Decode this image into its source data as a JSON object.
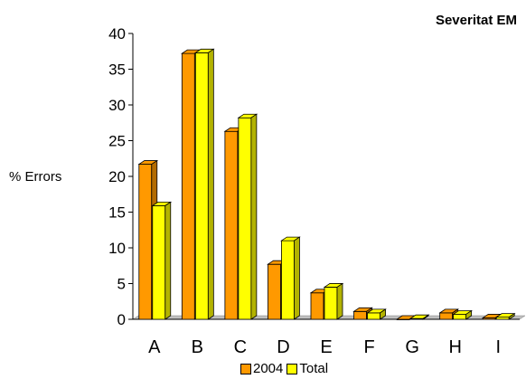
{
  "chart_data": {
    "type": "bar",
    "title": "Severitat EM",
    "xlabel": "",
    "ylabel": "% Errors",
    "categories": [
      "A",
      "B",
      "C",
      "D",
      "E",
      "F",
      "G",
      "H",
      "I"
    ],
    "series": [
      {
        "name": "2004",
        "color": "#ff9900",
        "values": [
          21.7,
          37.2,
          26.3,
          7.7,
          3.7,
          1.1,
          0.0,
          0.9,
          0.2
        ]
      },
      {
        "name": "Total",
        "color": "#ffff00",
        "values": [
          15.9,
          37.3,
          28.2,
          11.0,
          4.5,
          0.9,
          0.1,
          0.7,
          0.3
        ]
      }
    ],
    "ylim": [
      0,
      40
    ],
    "yticks": [
      "0",
      "5",
      "10",
      "15",
      "20",
      "25",
      "30",
      "35",
      "40"
    ],
    "grid": false,
    "legend_position": "bottom"
  }
}
